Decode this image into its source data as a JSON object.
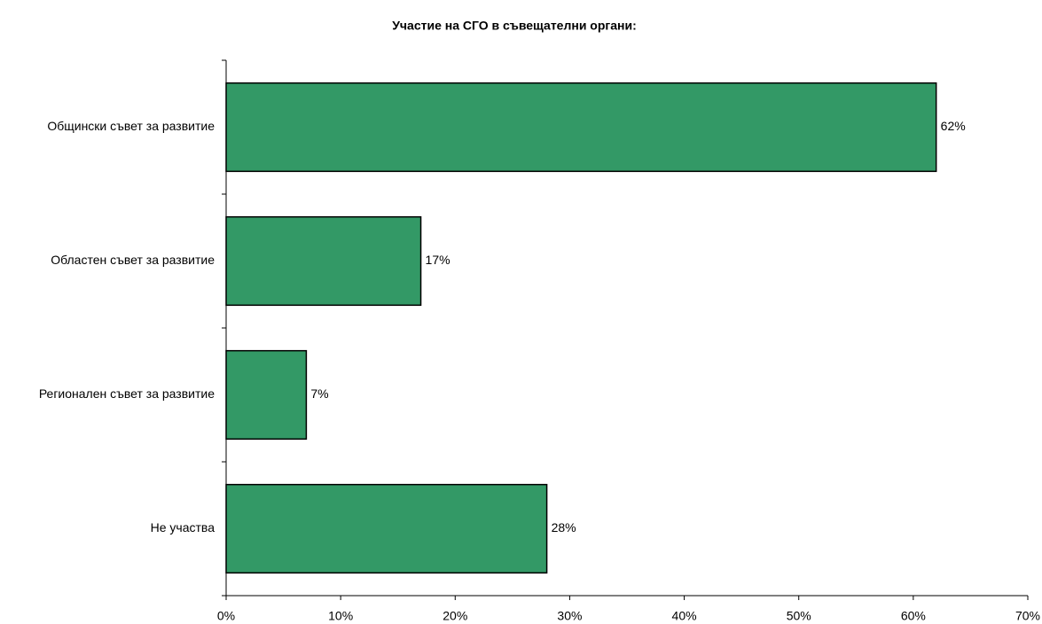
{
  "chart_data": {
    "type": "hbar",
    "title": "Участие на СГО в съвещателни органи:",
    "categories": [
      "Общински съвет за развитие",
      "Областен съвет за развитие",
      "Регионален съвет за развитие",
      "Не участва"
    ],
    "values": [
      62,
      17,
      7,
      28
    ],
    "value_labels": [
      "62%",
      "17%",
      "7%",
      "28%"
    ],
    "color": "#339966",
    "xlim": [
      0,
      70
    ],
    "xticks": [
      {
        "value": 0,
        "label": "0%"
      },
      {
        "value": 10,
        "label": "10%"
      },
      {
        "value": 20,
        "label": "20%"
      },
      {
        "value": 30,
        "label": "30%"
      },
      {
        "value": 40,
        "label": "40%"
      },
      {
        "value": 50,
        "label": "50%"
      },
      {
        "value": 60,
        "label": "60%"
      },
      {
        "value": 70,
        "label": "70%"
      }
    ],
    "grid": false
  }
}
